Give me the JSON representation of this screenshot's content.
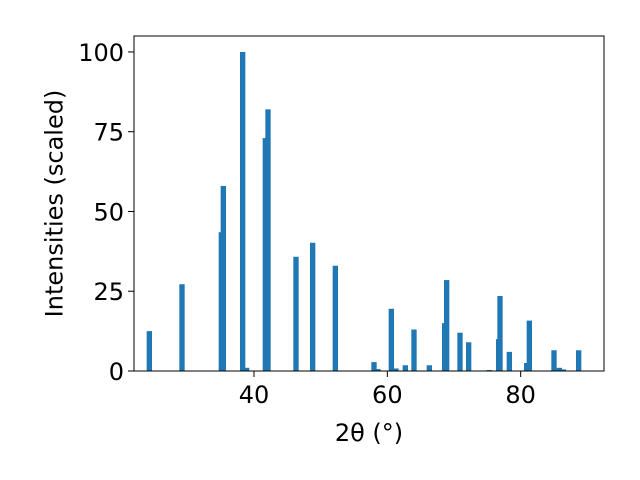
{
  "chart_data": {
    "type": "bar",
    "title": "",
    "xlabel": "2θ (°)",
    "ylabel": "Intensities (scaled)",
    "xlim": [
      22,
      92.5
    ],
    "ylim": [
      0,
      105
    ],
    "xticks": [
      40,
      60,
      80
    ],
    "yticks": [
      0,
      25,
      50,
      75,
      100
    ],
    "grid": false,
    "bar_color": "#1f77b4",
    "bar_width": 0.8,
    "series": [
      {
        "x": [
          24.3,
          29.2,
          35.1,
          35.4,
          38.3,
          38.9,
          41.7,
          42.1,
          46.3,
          48.8,
          52.2,
          58.0,
          58.6,
          60.6,
          61.3,
          62.7,
          64.0,
          66.3,
          68.6,
          68.9,
          70.9,
          72.2,
          75.3,
          76.7,
          76.9,
          78.3,
          80.9,
          81.3,
          85.0,
          85.8,
          86.4,
          88.7
        ],
        "y": [
          12.5,
          27.2,
          43.5,
          58.0,
          100.0,
          1.0,
          73.0,
          82.0,
          35.8,
          40.2,
          33.0,
          2.8,
          0.6,
          19.5,
          0.8,
          1.8,
          13.0,
          1.8,
          15.0,
          28.5,
          12.0,
          9.0,
          0.3,
          10.0,
          23.5,
          6.0,
          2.5,
          15.8,
          6.5,
          1.0,
          0.5,
          6.5
        ]
      }
    ]
  }
}
